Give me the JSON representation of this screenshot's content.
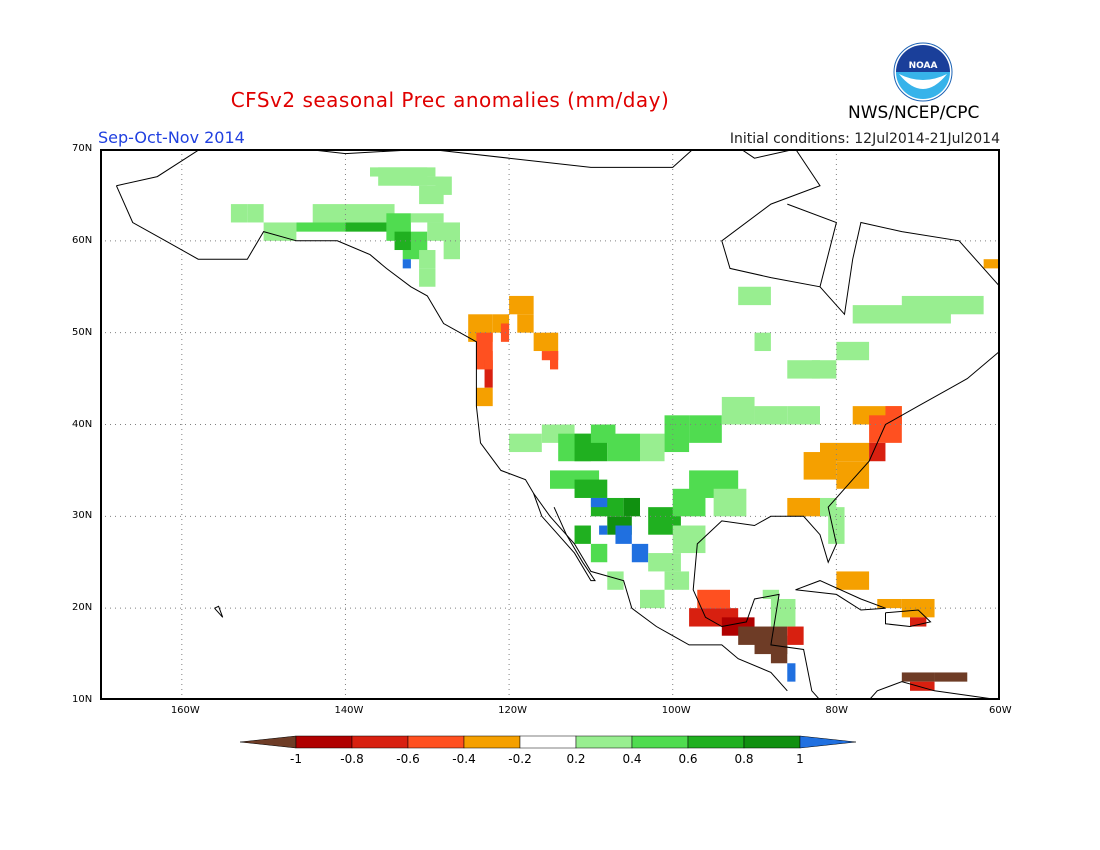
{
  "title": "CFSv2 seasonal Prec anomalies (mm/day)",
  "season": "Sep-Oct-Nov 2014",
  "initial_conditions": "Initial conditions: 12Jul2014-21Jul2014",
  "agency": "NWS/NCEP/CPC",
  "logo_text": "NOAA",
  "colors": {
    "title": "#e00000",
    "season": "#2040e0",
    "land_outline": "#000000"
  },
  "axes": {
    "lon_labels": [
      "160W",
      "140W",
      "120W",
      "100W",
      "80W",
      "60W"
    ],
    "lat_labels": [
      "10N",
      "20N",
      "30N",
      "40N",
      "50N",
      "60N",
      "70N"
    ]
  },
  "legend": {
    "tick_labels": [
      "-1",
      "-0.8",
      "-0.6",
      "-0.4",
      "-0.2",
      "0.2",
      "0.4",
      "0.6",
      "0.8",
      "1"
    ],
    "colors": [
      "#6e3c26",
      "#b00000",
      "#d82010",
      "#ff5020",
      "#f5a000",
      "#ffffff",
      "#98ee90",
      "#50dc50",
      "#20b020",
      "#109010",
      "#2070e0"
    ]
  }
}
